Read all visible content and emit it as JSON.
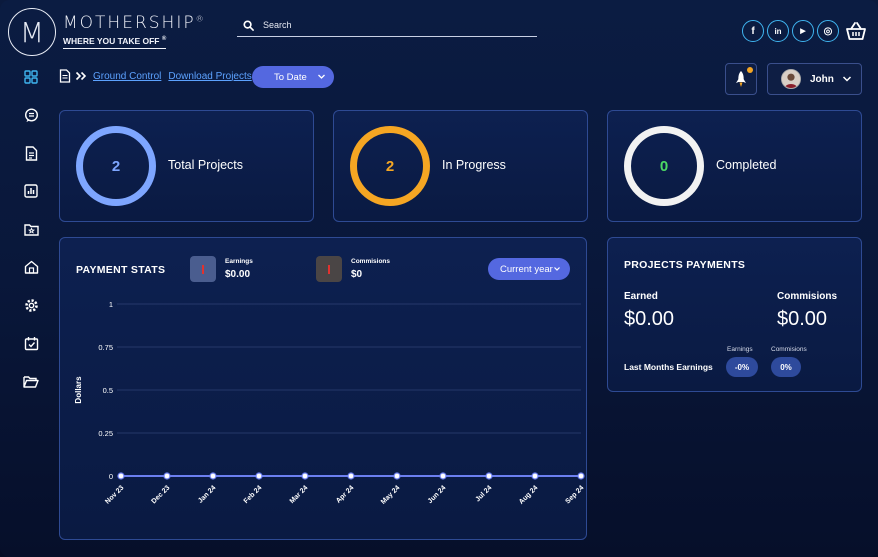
{
  "brand": {
    "initial": "M",
    "name": "MOTHERSHIP",
    "reg": "®",
    "tagline": "WHERE YOU TAKE OFF",
    "tag_reg": "®"
  },
  "search": {
    "placeholder": "Search"
  },
  "socials": [
    {
      "name": "facebook-icon",
      "glyph": "f"
    },
    {
      "name": "linkedin-icon",
      "glyph": "in"
    },
    {
      "name": "youtube-icon",
      "glyph": "▶"
    },
    {
      "name": "instagram-icon",
      "glyph": "◎"
    }
  ],
  "sidebar": {
    "items": [
      {
        "name": "dashboard-icon",
        "active": true
      },
      {
        "name": "chat-icon"
      },
      {
        "name": "document-icon"
      },
      {
        "name": "bar-chart-icon"
      },
      {
        "name": "folder-star-icon"
      },
      {
        "name": "home-icon"
      },
      {
        "name": "gear-icon"
      },
      {
        "name": "calendar-check-icon"
      },
      {
        "name": "folder-open-icon"
      }
    ]
  },
  "breadcrumb": {
    "items": [
      "Ground Control",
      "Download Projects"
    ]
  },
  "filters": {
    "date_range": "To Date",
    "year": "Current year"
  },
  "user": {
    "name": "John"
  },
  "stats": [
    {
      "value": "2",
      "label": "Total Projects",
      "color": "#7ea6ff"
    },
    {
      "value": "2",
      "label": "In Progress",
      "color": "#f5a623"
    },
    {
      "value": "0",
      "label": "Completed",
      "color": "#f2f2f2",
      "value_color": "#4cd964"
    }
  ],
  "payment_stats": {
    "title": "PAYMENT STATS",
    "earnings_label": "Earnings",
    "earnings_value": "$0.00",
    "commissions_label": "Commisions",
    "commissions_value": "$0"
  },
  "chart_data": {
    "type": "line",
    "categories": [
      "Nov 23",
      "Dec 23",
      "Jan 24",
      "Feb 24",
      "Mar 24",
      "Apr 24",
      "May 24",
      "Jun 24",
      "Jul 24",
      "Aug 24",
      "Sep 24"
    ],
    "series": [
      {
        "values": [
          0,
          0,
          0,
          0,
          0,
          0,
          0,
          0,
          0,
          0,
          0
        ],
        "color": "#6c7ff0"
      }
    ],
    "yticks": [
      "0",
      "0.25",
      "0.5",
      "0.75",
      "1"
    ],
    "ylabel": "Dollars",
    "ylim": [
      0,
      1
    ],
    "grid": true
  },
  "projects_payments": {
    "title": "PROJECTS PAYMENTS",
    "earned_label": "Earned",
    "earned_value": "$0.00",
    "commissions_label": "Commisions",
    "commissions_value": "$0.00",
    "last_months_label": "Last Months Earnings",
    "earnings_small": "Earnings",
    "earnings_pct": "-0%",
    "commissions_small": "Commisions",
    "commissions_pct": "0%"
  }
}
